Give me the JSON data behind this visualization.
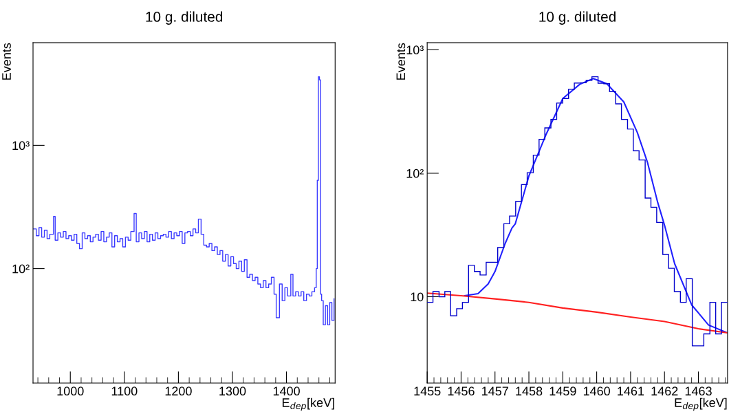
{
  "chart_data": [
    {
      "type": "step",
      "title": "10 g. diluted",
      "xlabel": "E$_{dep}$[keV]",
      "ylabel": "Events",
      "log": "y",
      "color": "#3a3aff",
      "x": [
        932,
        937,
        942,
        947,
        952,
        957,
        962,
        969,
        972,
        977,
        982,
        987,
        992,
        997,
        1002,
        1007,
        1012,
        1017,
        1022,
        1027,
        1032,
        1037,
        1042,
        1047,
        1052,
        1057,
        1062,
        1067,
        1072,
        1077,
        1082,
        1087,
        1092,
        1097,
        1102,
        1107,
        1112,
        1118,
        1122,
        1127,
        1132,
        1137,
        1142,
        1147,
        1152,
        1157,
        1162,
        1167,
        1172,
        1177,
        1182,
        1187,
        1192,
        1197,
        1202,
        1207,
        1212,
        1217,
        1222,
        1227,
        1232,
        1237,
        1242,
        1247,
        1252,
        1257,
        1262,
        1267,
        1272,
        1277,
        1282,
        1287,
        1292,
        1297,
        1302,
        1307,
        1312,
        1317,
        1322,
        1327,
        1332,
        1337,
        1342,
        1347,
        1352,
        1357,
        1362,
        1367,
        1372,
        1377,
        1381,
        1387,
        1392,
        1397,
        1402,
        1408,
        1412,
        1417,
        1422,
        1427,
        1432,
        1437,
        1442,
        1447,
        1452,
        1455,
        1457,
        1459,
        1461,
        1463,
        1465,
        1468,
        1472,
        1476,
        1480,
        1484,
        1488
      ],
      "values": [
        210,
        185,
        215,
        180,
        205,
        175,
        190,
        265,
        170,
        195,
        180,
        200,
        175,
        185,
        170,
        190,
        160,
        145,
        195,
        175,
        185,
        165,
        180,
        190,
        170,
        200,
        165,
        180,
        195,
        150,
        185,
        165,
        175,
        150,
        180,
        170,
        200,
        280,
        165,
        195,
        175,
        200,
        165,
        190,
        170,
        195,
        175,
        185,
        190,
        180,
        200,
        175,
        195,
        185,
        200,
        160,
        195,
        200,
        185,
        210,
        195,
        252,
        190,
        155,
        150,
        160,
        140,
        150,
        130,
        140,
        115,
        130,
        105,
        125,
        110,
        100,
        115,
        95,
        118,
        85,
        90,
        80,
        85,
        75,
        70,
        80,
        70,
        75,
        85,
        62,
        40,
        75,
        55,
        70,
        60,
        90,
        60,
        65,
        60,
        65,
        55,
        62,
        60,
        65,
        70,
        100,
        520,
        3600,
        3400,
        62,
        55,
        35,
        50,
        35,
        53,
        38,
        57
      ],
      "xlim": [
        931,
        1490
      ],
      "xticks": [
        1000,
        1100,
        1200,
        1300,
        1400
      ],
      "ylim": [
        11.8,
        6800
      ],
      "yticks": [
        {
          "value": 100,
          "label": "10²"
        },
        {
          "value": 1000,
          "label": "10³"
        }
      ]
    },
    {
      "type": "histogram",
      "title": "10 g. diluted",
      "xlabel": "E$_{dep}$[keV]",
      "ylabel": "Events",
      "log": "y",
      "color": "#0000cc",
      "bins": [
        1455.0,
        1455.17,
        1455.35,
        1455.52,
        1455.69,
        1455.87,
        1456.04,
        1456.22,
        1456.39,
        1456.56,
        1456.74,
        1456.91,
        1457.08,
        1457.26,
        1457.43,
        1457.61,
        1457.78,
        1457.95,
        1458.13,
        1458.3,
        1458.47,
        1458.65,
        1458.82,
        1459.0,
        1459.17,
        1459.34,
        1459.52,
        1459.69,
        1459.86,
        1460.04,
        1460.21,
        1460.38,
        1460.56,
        1460.73,
        1460.91,
        1461.08,
        1461.25,
        1461.43,
        1461.6,
        1461.77,
        1461.95,
        1462.12,
        1462.29,
        1462.47,
        1462.64,
        1462.82,
        1462.99,
        1463.16,
        1463.34,
        1463.51,
        1463.68,
        1463.86
      ],
      "values": [
        9,
        11,
        10,
        11,
        7,
        8,
        9,
        18,
        16,
        15,
        19,
        19,
        25,
        39,
        45,
        59,
        81,
        101,
        140,
        188,
        233,
        273,
        370,
        403,
        478,
        538,
        540,
        566,
        604,
        536,
        531,
        458,
        365,
        273,
        228,
        152,
        128,
        63,
        53,
        40,
        22,
        17,
        11,
        9,
        14,
        4,
        4,
        5,
        9,
        5,
        9
      ],
      "series": [
        {
          "type": "line",
          "color": "#2020ff",
          "x": [
            1456.1,
            1456.5,
            1456.8,
            1457.0,
            1457.3,
            1457.5,
            1457.6,
            1458.0,
            1458.5,
            1459.0,
            1459.5,
            1459.9,
            1460.3,
            1460.8,
            1461.2,
            1461.5,
            1461.8,
            1462.0,
            1462.3,
            1462.8,
            1463.3,
            1463.86
          ],
          "values": [
            10.2,
            10.6,
            12.7,
            16,
            27,
            36,
            39,
            95,
            204,
            403,
            525,
            585,
            531,
            378,
            213,
            122,
            58,
            38,
            18.5,
            8.6,
            5.9,
            5.1
          ]
        },
        {
          "type": "line",
          "color": "#ff2020",
          "x": [
            1455,
            1456,
            1457,
            1458,
            1459,
            1460,
            1461,
            1462,
            1463,
            1463.86
          ],
          "values": [
            10.7,
            10.2,
            9.6,
            9.0,
            8.1,
            7.5,
            6.85,
            6.3,
            5.5,
            5.1
          ]
        }
      ],
      "xlim": [
        1455,
        1463.86
      ],
      "xticks": [
        1455,
        1456,
        1457,
        1458,
        1459,
        1460,
        1461,
        1462,
        1463
      ],
      "ylim": [
        2,
        1140
      ],
      "yticks": [
        {
          "value": 10,
          "label": "10"
        },
        {
          "value": 100,
          "label": "10²"
        },
        {
          "value": 1000,
          "label": "10³"
        }
      ]
    }
  ]
}
